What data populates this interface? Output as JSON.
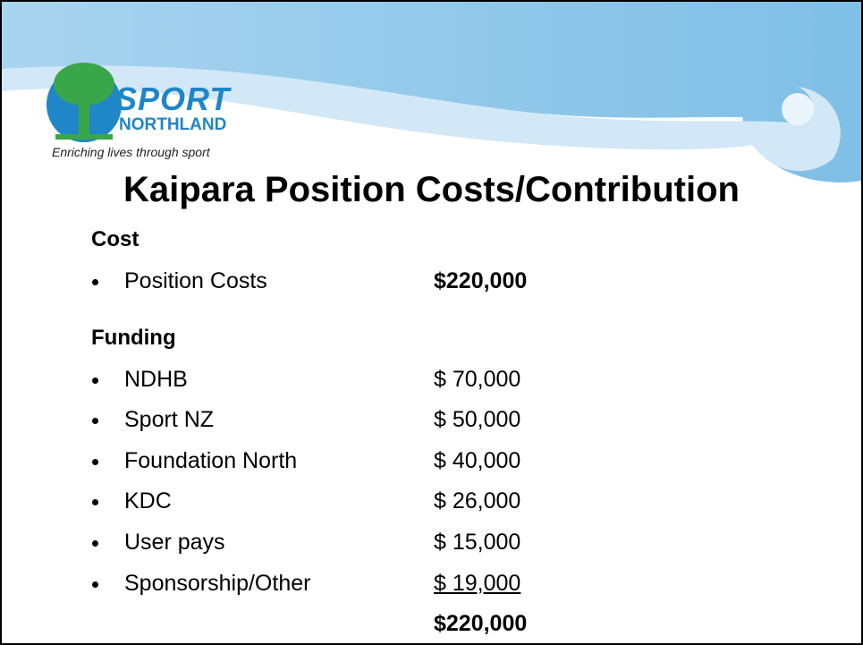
{
  "logo": {
    "name": "SPORT",
    "subname": "NORTHLAND",
    "tagline": "Enriching lives through sport"
  },
  "title": "Kaipara Position Costs/Contribution",
  "sections": [
    {
      "heading": "Cost",
      "items": [
        {
          "label": "Position Costs",
          "amount": "$220,000"
        }
      ]
    },
    {
      "heading": "Funding",
      "items": [
        {
          "label": "NDHB",
          "amount": "$ 70,000"
        },
        {
          "label": "Sport NZ",
          "amount": "$ 50,000"
        },
        {
          "label": "Foundation North",
          "amount": "$ 40,000"
        },
        {
          "label": "KDC",
          "amount": "$ 26,000"
        },
        {
          "label": "User pays",
          "amount": "$ 15,000"
        },
        {
          "label": "Sponsorship/Other",
          "amount": "$ 19,000"
        }
      ],
      "total": "$220,000"
    }
  ]
}
